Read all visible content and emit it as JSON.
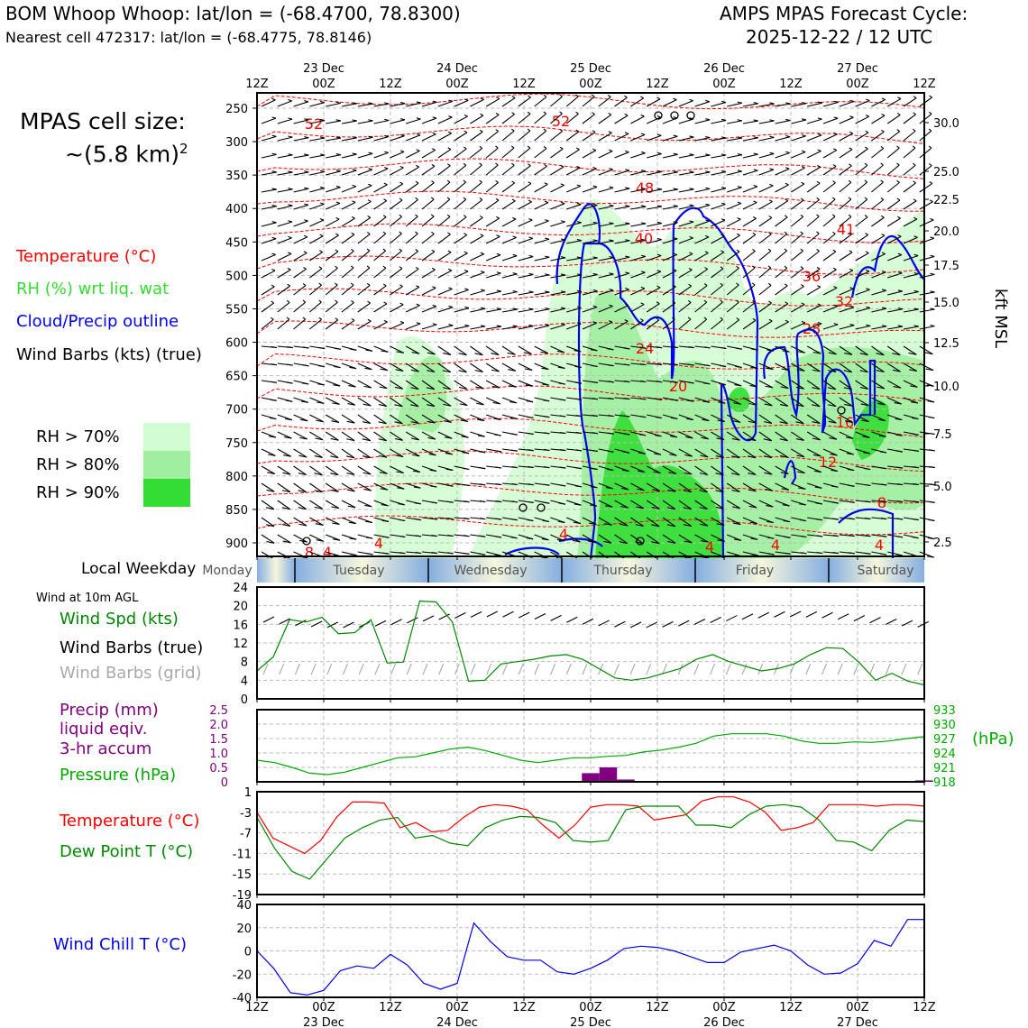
{
  "header": {
    "title_left": "BOM Whoop Whoop: lat/lon = (-68.4700, 78.8300)",
    "subtitle_left": "Nearest cell 472317: lat/lon = (-68.4775, 78.8146)",
    "title_right_1": "AMPS MPAS Forecast Cycle:",
    "title_right_2": "2025-12-22 / 12 UTC"
  },
  "sidebar": {
    "cell_size_1": "MPAS cell size:",
    "cell_size_2": "~(5.8 km)",
    "cell_size_sup": "2",
    "legend_temperature": "Temperature (°C)",
    "legend_rh": "RH (%) wrt liq. wat",
    "legend_cloud": "Cloud/Precip outline",
    "legend_wind": "Wind Barbs (kts) (true)",
    "rh_70": "RH > 70%",
    "rh_80": "RH > 80%",
    "rh_90": "RH > 90%",
    "weekday_label": "Local Weekday",
    "wind10_title": "Wind at 10m AGL",
    "wind_spd": "Wind Spd (kts)",
    "wind_barbs_true": "Wind Barbs (true)",
    "wind_barbs_grid": "Wind Barbs (grid)",
    "precip_1": "Precip (mm)",
    "precip_2": "liquid eqiv.",
    "precip_3": "3-hr accum",
    "pressure": "Pressure (hPa)",
    "temperature": "Temperature (°C)",
    "dewpoint": "Dew Point T (°C)",
    "windchill": "Wind Chill T (°C)"
  },
  "colors": {
    "temperature": "#ff0000",
    "rh_70": "#d2fdd2",
    "rh_80": "#a0eea0",
    "rh_90": "#33dd33",
    "cloud": "#0000ee",
    "wind_speed": "#008800",
    "wind_grid": "#aaaaaa",
    "precip": "#800080",
    "pressure": "#00aa00",
    "dewpoint": "#008800",
    "windchill": "#0000ee"
  },
  "time_axis": {
    "tick_labels": [
      "12Z",
      "00Z",
      "12Z",
      "00Z",
      "12Z",
      "00Z",
      "12Z",
      "00Z",
      "12Z",
      "00Z",
      "12Z"
    ],
    "day_labels": [
      "23 Dec",
      "24 Dec",
      "25 Dec",
      "26 Dec",
      "27 Dec"
    ],
    "weekdays": [
      "Monday",
      "Tuesday",
      "Wednesday",
      "Thursday",
      "Friday",
      "Saturday"
    ]
  },
  "chart_data": [
    {
      "type": "contour",
      "y_left_ticks": [
        250,
        300,
        350,
        400,
        450,
        500,
        550,
        600,
        650,
        700,
        750,
        800,
        850,
        900
      ],
      "y_right_ticks": [
        "30.0",
        "25.0",
        "22.5",
        "20.0",
        "17.5",
        "15.0",
        "12.5",
        "10.0",
        "7.5",
        "5.0",
        "2.5"
      ],
      "y_right_label": "kft MSL",
      "temperature_contour_labels": [
        "52",
        "52",
        "48",
        "40",
        "41",
        "36",
        "32",
        "28",
        "24",
        "20",
        "16",
        "12",
        "8",
        "4",
        "4",
        "4",
        "4",
        "8",
        "4",
        "4"
      ]
    },
    {
      "type": "line",
      "ylim": [
        0,
        24
      ],
      "y_ticks": [
        "0",
        "4",
        "8",
        "12",
        "16",
        "20",
        "24"
      ],
      "series": [
        {
          "name": "Wind Spd (kts)",
          "values": [
            6,
            9,
            17,
            16.5,
            17.5,
            14,
            14.2,
            17,
            7.7,
            7.9,
            21,
            20.8,
            16.5,
            3.8,
            4,
            7.5,
            8,
            8.5,
            9.2,
            9.5,
            8.5,
            6.5,
            4.5,
            4,
            4.5,
            5.5,
            6.5,
            8.5,
            9.5,
            8,
            7,
            6,
            6.5,
            7.5,
            9.5,
            11,
            10.8,
            7.8,
            4,
            5.5,
            3.8,
            3
          ]
        }
      ]
    },
    {
      "type": "bar+line",
      "precip_ylim": [
        0,
        2.5
      ],
      "precip_ticks": [
        "2.5",
        "2.0",
        "1.5",
        "1.0",
        "0.5",
        "0"
      ],
      "pressure_ticks": [
        "933",
        "930",
        "927",
        "924",
        "921",
        "918"
      ],
      "pressure_ylim": [
        918,
        933
      ],
      "pressure_unit": "(hPa)",
      "pressure_values": [
        922.5,
        922,
        921,
        919.8,
        919.5,
        920,
        921,
        922,
        923,
        923.2,
        924,
        924.8,
        925.2,
        924.5,
        923.5,
        922.5,
        922,
        922.5,
        923,
        923,
        923.3,
        923.5,
        924.2,
        924.6,
        925.2,
        926,
        927.5,
        928,
        928,
        928,
        927.5,
        926.5,
        926,
        926,
        926.3,
        926.2,
        926.5,
        927,
        927.4
      ],
      "precip_values": [
        0,
        0,
        0,
        0,
        0,
        0,
        0,
        0,
        0,
        0,
        0,
        0,
        0,
        0,
        0,
        0,
        0,
        0,
        0,
        0.3,
        0.5,
        0.08,
        0,
        0,
        0,
        0,
        0,
        0,
        0,
        0,
        0,
        0,
        0,
        0,
        0,
        0,
        0,
        0,
        0.05
      ]
    },
    {
      "type": "line",
      "ylim": [
        -19,
        1
      ],
      "y_ticks": [
        "1",
        "-3",
        "-7",
        "-11",
        "-15",
        "-19"
      ],
      "series": [
        {
          "name": "Temperature (°C)",
          "values": [
            -3,
            -8,
            -9.5,
            -11,
            -8.5,
            -4,
            -1,
            -1,
            -1.2,
            -6,
            -5,
            -6.8,
            -6.5,
            -4,
            -2,
            -1.5,
            -1.8,
            -2.5,
            -5.5,
            -8,
            -5.5,
            -2,
            -1.5,
            -1.5,
            -1.8,
            -4.5,
            -4,
            -3.5,
            -0.8,
            0,
            0,
            -1,
            -3,
            -6.5,
            -6,
            -5,
            -1.5,
            -1.5,
            -1.5,
            -1.8,
            -1.5,
            -1.5,
            -1.8
          ],
          "comment_note": ""
        },
        {
          "name": "Dew Point T (°C)",
          "values": [
            -4,
            -10,
            -14.5,
            -16,
            -12,
            -8,
            -6,
            -4.5,
            -4,
            -8,
            -7.5,
            -9,
            -9.5,
            -6,
            -4.5,
            -3.8,
            -4,
            -5,
            -8.5,
            -8.8,
            -8.5,
            -2.5,
            -1.8,
            -1.8,
            -1.8,
            -5.5,
            -5.5,
            -6,
            -3.5,
            -1.8,
            -1.5,
            -2,
            -4.5,
            -8.5,
            -8.8,
            -10.5,
            -6.5,
            -4.5,
            -4.8
          ]
        }
      ]
    },
    {
      "type": "line",
      "ylim": [
        -40,
        40
      ],
      "y_ticks": [
        "40",
        "20",
        "0",
        "-20",
        "-40"
      ],
      "series": [
        {
          "name": "Wind Chill T (°C)",
          "values": [
            0,
            -15,
            -36,
            -38,
            -34,
            -17,
            -13,
            -15,
            -3,
            -12,
            -28,
            -33,
            -28,
            24,
            8,
            -5,
            -8,
            -8,
            -18,
            -20,
            -15,
            -8,
            2,
            4,
            3,
            0,
            -5,
            -10,
            -10,
            -1,
            2,
            5,
            0,
            -12,
            -20,
            -19,
            -11,
            9,
            4,
            27,
            27
          ]
        }
      ]
    }
  ]
}
